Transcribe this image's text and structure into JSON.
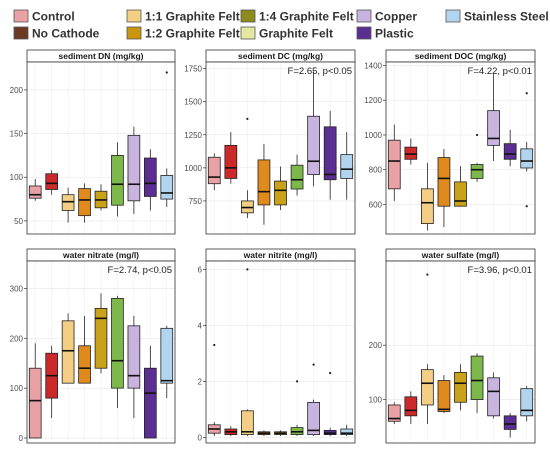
{
  "legend": [
    {
      "label": "Control",
      "color": "#E8A2A6"
    },
    {
      "label": "No Cathode",
      "color": "#6B3A22"
    },
    {
      "label": "1:1 Graphite Felt",
      "color": "#F4CE85"
    },
    {
      "label": "1:2 Graphite Felt",
      "color": "#C9960E"
    },
    {
      "label": "1:4 Graphite Felt",
      "color": "#8C8C1C"
    },
    {
      "label": "Graphite Felt",
      "color": "#E2E8A2"
    },
    {
      "label": "Copper",
      "color": "#C8B4DE"
    },
    {
      "label": "Plastic",
      "color": "#5B2E91"
    },
    {
      "label": "Stainless Steel",
      "color": "#B3D4EE"
    }
  ],
  "chart_data": [
    {
      "type": "boxplot",
      "title": "sediment DN (mg/kg)",
      "annotation": "",
      "ylim": [
        35,
        232
      ],
      "yticks": [
        "50",
        "100",
        "150",
        "200"
      ],
      "fills": [
        "#E8A2A6",
        "#CC2A2A",
        "#F4CE85",
        "#E08A1E",
        "#C9A21A",
        "#7DB84A",
        "#C8B4DE",
        "#5B2E91",
        "#B3D4EE"
      ],
      "boxes": [
        {
          "min": 73,
          "q1": 76,
          "median": 80,
          "q3": 90,
          "max": 98,
          "outliers": []
        },
        {
          "min": 80,
          "q1": 86,
          "median": 93,
          "q3": 104,
          "max": 108,
          "outliers": []
        },
        {
          "min": 48,
          "q1": 62,
          "median": 72,
          "q3": 80,
          "max": 88,
          "outliers": []
        },
        {
          "min": 48,
          "q1": 56,
          "median": 74,
          "q3": 87,
          "max": 93,
          "outliers": []
        },
        {
          "min": 62,
          "q1": 65,
          "median": 74,
          "q3": 84,
          "max": 92,
          "outliers": []
        },
        {
          "min": 55,
          "q1": 68,
          "median": 92,
          "q3": 125,
          "max": 140,
          "outliers": []
        },
        {
          "min": 58,
          "q1": 73,
          "median": 92,
          "q3": 148,
          "max": 158,
          "outliers": []
        },
        {
          "min": 62,
          "q1": 78,
          "median": 93,
          "q3": 122,
          "max": 132,
          "outliers": []
        },
        {
          "min": 66,
          "q1": 75,
          "median": 82,
          "q3": 102,
          "max": 110,
          "outliers": [
            220
          ]
        }
      ]
    },
    {
      "type": "boxplot",
      "title": "sediment DC (mg/kg)",
      "annotation": "F=2.65, p<0.05",
      "ylim": [
        500,
        1800
      ],
      "yticks": [
        "750",
        "1000",
        "1250",
        "1500",
        "1750"
      ],
      "fills": [
        "#E8A2A6",
        "#CC2A2A",
        "#F4CE85",
        "#E08A1E",
        "#C9A21A",
        "#7DB84A",
        "#C8B4DE",
        "#5B2E91",
        "#B3D4EE"
      ],
      "boxes": [
        {
          "min": 830,
          "q1": 880,
          "median": 930,
          "q3": 1080,
          "max": 1110,
          "outliers": []
        },
        {
          "min": 880,
          "q1": 920,
          "median": 1000,
          "q3": 1170,
          "max": 1270,
          "outliers": []
        },
        {
          "min": 620,
          "q1": 660,
          "median": 700,
          "q3": 750,
          "max": 830,
          "outliers": [
            1370
          ]
        },
        {
          "min": 570,
          "q1": 720,
          "median": 820,
          "q3": 1060,
          "max": 1180,
          "outliers": []
        },
        {
          "min": 680,
          "q1": 720,
          "median": 830,
          "q3": 900,
          "max": 1010,
          "outliers": []
        },
        {
          "min": 790,
          "q1": 840,
          "median": 910,
          "q3": 1020,
          "max": 1100,
          "outliers": []
        },
        {
          "min": 860,
          "q1": 950,
          "median": 1050,
          "q3": 1390,
          "max": 1730,
          "outliers": []
        },
        {
          "min": 760,
          "q1": 910,
          "median": 950,
          "q3": 1310,
          "max": 1430,
          "outliers": []
        },
        {
          "min": 760,
          "q1": 920,
          "median": 990,
          "q3": 1100,
          "max": 1270,
          "outliers": []
        }
      ]
    },
    {
      "type": "boxplot",
      "title": "sediment DOC (mg/kg)",
      "annotation": "F=4.22, p<0.01",
      "ylim": [
        430,
        1420
      ],
      "yticks": [
        "600",
        "800",
        "1000",
        "1200",
        "1400"
      ],
      "fills": [
        "#E8A2A6",
        "#CC2A2A",
        "#F4CE85",
        "#E08A1E",
        "#C9A21A",
        "#7DB84A",
        "#C8B4DE",
        "#5B2E91",
        "#B3D4EE"
      ],
      "boxes": [
        {
          "min": 620,
          "q1": 690,
          "median": 850,
          "q3": 970,
          "max": 1060,
          "outliers": []
        },
        {
          "min": 830,
          "q1": 860,
          "median": 890,
          "q3": 930,
          "max": 980,
          "outliers": []
        },
        {
          "min": 450,
          "q1": 490,
          "median": 610,
          "q3": 690,
          "max": 840,
          "outliers": []
        },
        {
          "min": 470,
          "q1": 590,
          "median": 750,
          "q3": 870,
          "max": 920,
          "outliers": []
        },
        {
          "min": 590,
          "q1": 590,
          "median": 620,
          "q3": 730,
          "max": 820,
          "outliers": []
        },
        {
          "min": 730,
          "q1": 750,
          "median": 800,
          "q3": 830,
          "max": 840,
          "outliers": [
            1000
          ]
        },
        {
          "min": 850,
          "q1": 940,
          "median": 980,
          "q3": 1140,
          "max": 1350,
          "outliers": []
        },
        {
          "min": 820,
          "q1": 860,
          "median": 890,
          "q3": 950,
          "max": 1030,
          "outliers": []
        },
        {
          "min": 790,
          "q1": 810,
          "median": 850,
          "q3": 920,
          "max": 960,
          "outliers": [
            1240,
            590
          ]
        }
      ]
    },
    {
      "type": "boxplot",
      "title": "water nitrate (mg/l)",
      "annotation": "F=2.74, p<0.05",
      "ylim": [
        -10,
        355
      ],
      "yticks": [
        "0",
        "100",
        "200",
        "300"
      ],
      "fills": [
        "#E8A2A6",
        "#CC2A2A",
        "#F4CE85",
        "#E08A1E",
        "#C9A21A",
        "#7DB84A",
        "#C8B4DE",
        "#5B2E91",
        "#B3D4EE"
      ],
      "boxes": [
        {
          "min": 0,
          "q1": 0,
          "median": 75,
          "q3": 140,
          "max": 190,
          "outliers": []
        },
        {
          "min": 40,
          "q1": 80,
          "median": 125,
          "q3": 170,
          "max": 185,
          "outliers": []
        },
        {
          "min": 110,
          "q1": 110,
          "median": 175,
          "q3": 235,
          "max": 250,
          "outliers": []
        },
        {
          "min": 110,
          "q1": 110,
          "median": 140,
          "q3": 185,
          "max": 245,
          "outliers": []
        },
        {
          "min": 130,
          "q1": 140,
          "median": 240,
          "q3": 260,
          "max": 290,
          "outliers": []
        },
        {
          "min": 60,
          "q1": 100,
          "median": 155,
          "q3": 280,
          "max": 285,
          "outliers": []
        },
        {
          "min": 40,
          "q1": 100,
          "median": 125,
          "q3": 225,
          "max": 245,
          "outliers": []
        },
        {
          "min": 0,
          "q1": 0,
          "median": 90,
          "q3": 140,
          "max": 185,
          "outliers": []
        },
        {
          "min": 80,
          "q1": 110,
          "median": 115,
          "q3": 220,
          "max": 225,
          "outliers": []
        }
      ]
    },
    {
      "type": "boxplot",
      "title": "water nitrite (mg/l)",
      "annotation": "",
      "ylim": [
        -0.2,
        6.3
      ],
      "yticks": [
        "0",
        "2",
        "4",
        "6"
      ],
      "fills": [
        "#E8A2A6",
        "#CC2A2A",
        "#F4CE85",
        "#E08A1E",
        "#C9A21A",
        "#7DB84A",
        "#C8B4DE",
        "#5B2E91",
        "#B3D4EE"
      ],
      "boxes": [
        {
          "min": 0.05,
          "q1": 0.15,
          "median": 0.3,
          "q3": 0.45,
          "max": 0.55,
          "outliers": [
            3.3
          ]
        },
        {
          "min": 0.05,
          "q1": 0.1,
          "median": 0.2,
          "q3": 0.3,
          "max": 0.4,
          "outliers": []
        },
        {
          "min": 0.05,
          "q1": 0.1,
          "median": 0.2,
          "q3": 0.95,
          "max": 1.0,
          "outliers": [
            6.0
          ]
        },
        {
          "min": 0.05,
          "q1": 0.1,
          "median": 0.15,
          "q3": 0.2,
          "max": 0.25,
          "outliers": []
        },
        {
          "min": 0.05,
          "q1": 0.1,
          "median": 0.15,
          "q3": 0.2,
          "max": 0.25,
          "outliers": []
        },
        {
          "min": 0.05,
          "q1": 0.1,
          "median": 0.2,
          "q3": 0.35,
          "max": 0.45,
          "outliers": [
            2.0
          ]
        },
        {
          "min": 0.05,
          "q1": 0.1,
          "median": 0.25,
          "q3": 1.25,
          "max": 1.35,
          "outliers": [
            2.6
          ]
        },
        {
          "min": 0.05,
          "q1": 0.1,
          "median": 0.15,
          "q3": 0.25,
          "max": 0.35,
          "outliers": [
            2.3
          ]
        },
        {
          "min": 0.05,
          "q1": 0.1,
          "median": 0.15,
          "q3": 0.3,
          "max": 0.45,
          "outliers": []
        }
      ]
    },
    {
      "type": "boxplot",
      "title": "water sulfate (mg/l)",
      "annotation": "F=3.96, p<0.01",
      "ylim": [
        20,
        355
      ],
      "yticks": [
        "100",
        "200"
      ],
      "fills": [
        "#E8A2A6",
        "#CC2A2A",
        "#F4CE85",
        "#E08A1E",
        "#C9A21A",
        "#7DB84A",
        "#C8B4DE",
        "#5B2E91",
        "#B3D4EE"
      ],
      "boxes": [
        {
          "min": 55,
          "q1": 60,
          "median": 65,
          "q3": 90,
          "max": 95,
          "outliers": []
        },
        {
          "min": 55,
          "q1": 70,
          "median": 80,
          "q3": 105,
          "max": 115,
          "outliers": []
        },
        {
          "min": 55,
          "q1": 90,
          "median": 130,
          "q3": 155,
          "max": 165,
          "outliers": [
            330
          ]
        },
        {
          "min": 75,
          "q1": 78,
          "median": 82,
          "q3": 135,
          "max": 145,
          "outliers": []
        },
        {
          "min": 80,
          "q1": 95,
          "median": 130,
          "q3": 150,
          "max": 165,
          "outliers": []
        },
        {
          "min": 75,
          "q1": 100,
          "median": 135,
          "q3": 180,
          "max": 185,
          "outliers": []
        },
        {
          "min": 65,
          "q1": 70,
          "median": 115,
          "q3": 140,
          "max": 150,
          "outliers": []
        },
        {
          "min": 30,
          "q1": 45,
          "median": 55,
          "q3": 70,
          "max": 75,
          "outliers": []
        },
        {
          "min": 60,
          "q1": 70,
          "median": 80,
          "q3": 120,
          "max": 125,
          "outliers": []
        }
      ]
    }
  ]
}
